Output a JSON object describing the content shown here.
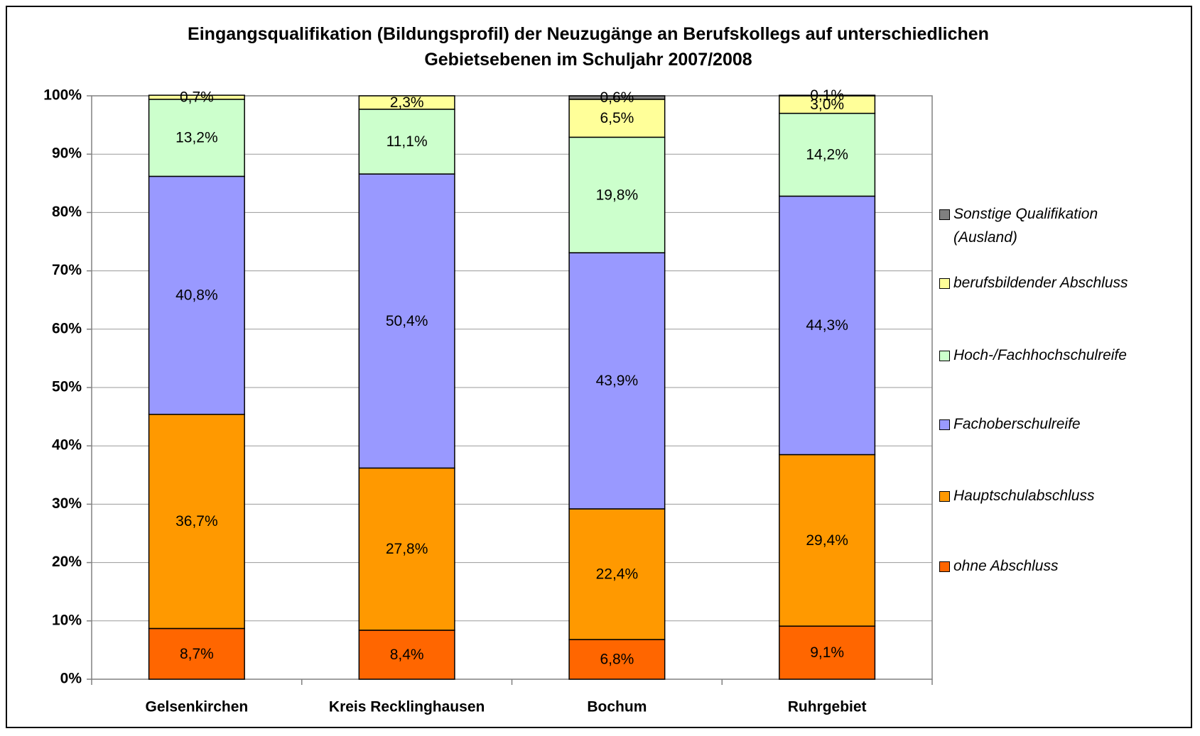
{
  "chart_data": {
    "type": "stacked_bar",
    "title": "Eingangsqualifikation (Bildungsprofil) der Neuzugänge an Berufskollegs auf unterschiedlichen Gebietsebenen im Schuljahr 2007/2008",
    "categories": [
      "Gelsenkirchen",
      "Kreis Recklinghausen",
      "Bochum",
      "Ruhrgebiet"
    ],
    "series": [
      {
        "name": "ohne Abschluss",
        "color": "#FF6600",
        "values": [
          8.7,
          8.4,
          6.8,
          9.1
        ],
        "value_labels": [
          "8,7%",
          "8,4%",
          "6,8%",
          "9,1%"
        ]
      },
      {
        "name": "Hauptschulabschluss",
        "color": "#FF9900",
        "values": [
          36.7,
          27.8,
          22.4,
          29.4
        ],
        "value_labels": [
          "36,7%",
          "27,8%",
          "22,4%",
          "29,4%"
        ]
      },
      {
        "name": "Fachoberschulreife",
        "color": "#9999FF",
        "values": [
          40.8,
          50.4,
          43.9,
          44.3
        ],
        "value_labels": [
          "40,8%",
          "50,4%",
          "43,9%",
          "44,3%"
        ]
      },
      {
        "name": "Hoch-/Fachhochschulreife",
        "color": "#CCFFCC",
        "values": [
          13.2,
          11.1,
          19.8,
          14.2
        ],
        "value_labels": [
          "13,2%",
          "11,1%",
          "19,8%",
          "14,2%"
        ]
      },
      {
        "name": "berufsbildender Abschluss",
        "color": "#FFFF99",
        "values": [
          0.7,
          2.3,
          6.5,
          3.0
        ],
        "value_labels": [
          "0,7%",
          "2,3%",
          "6,5%",
          "3,0%"
        ]
      },
      {
        "name": "Sonstige Qualifikation (Ausland)",
        "color": "#808080",
        "values": [
          0,
          0,
          0.6,
          0.1
        ],
        "value_labels": [
          null,
          null,
          "0,6%",
          "0,1%"
        ]
      }
    ],
    "ylim": [
      0,
      100
    ],
    "yticks": [
      {
        "value": 0,
        "label": "0%"
      },
      {
        "value": 10,
        "label": "10%"
      },
      {
        "value": 20,
        "label": "20%"
      },
      {
        "value": 30,
        "label": "30%"
      },
      {
        "value": 40,
        "label": "40%"
      },
      {
        "value": 50,
        "label": "50%"
      },
      {
        "value": 60,
        "label": "60%"
      },
      {
        "value": 70,
        "label": "70%"
      },
      {
        "value": 80,
        "label": "80%"
      },
      {
        "value": 90,
        "label": "90%"
      },
      {
        "value": 100,
        "label": "100%"
      }
    ],
    "grid": true,
    "legend": "right"
  }
}
